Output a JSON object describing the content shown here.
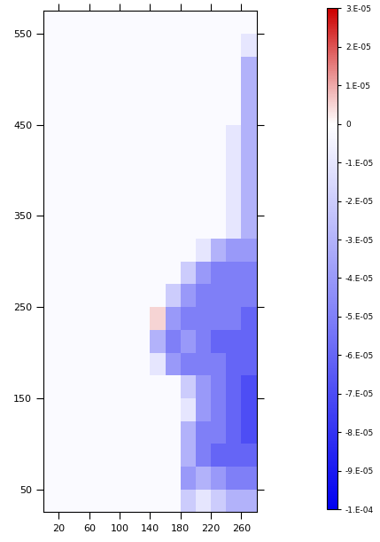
{
  "chart_data": {
    "type": "heatmap",
    "x_edges": [
      0,
      20,
      40,
      60,
      80,
      100,
      120,
      140,
      160,
      180,
      200,
      220,
      240,
      260,
      280
    ],
    "y_edges": [
      25,
      50,
      75,
      100,
      125,
      150,
      175,
      200,
      225,
      250,
      275,
      300,
      325,
      350,
      375,
      400,
      425,
      450,
      475,
      500,
      525,
      550,
      575
    ],
    "cells": [
      [
        -2e-06,
        -2e-06,
        -2e-06,
        -2e-06,
        -2e-06,
        -2e-06,
        -2e-06,
        -2e-06,
        -2e-06,
        -2e-05,
        -1e-05,
        -2e-05,
        -3e-05,
        -3e-05
      ],
      [
        -2e-06,
        -2e-06,
        -2e-06,
        -2e-06,
        -2e-06,
        -2e-06,
        -2e-06,
        -2e-06,
        -2e-06,
        -4e-05,
        -3e-05,
        -4e-05,
        -5e-05,
        -5e-05
      ],
      [
        -2e-06,
        -2e-06,
        -2e-06,
        -2e-06,
        -2e-06,
        -2e-06,
        -2e-06,
        -2e-06,
        -2e-06,
        -3e-05,
        -5e-05,
        -6e-05,
        -6e-05,
        -6e-05
      ],
      [
        -2e-06,
        -2e-06,
        -2e-06,
        -2e-06,
        -2e-06,
        -2e-06,
        -2e-06,
        -2e-06,
        -2e-06,
        -3e-05,
        -5e-05,
        -5e-05,
        -6e-05,
        -7e-05
      ],
      [
        -2e-06,
        -2e-06,
        -2e-06,
        -2e-06,
        -2e-06,
        -2e-06,
        -2e-06,
        -2e-06,
        -2e-06,
        -1e-05,
        -4e-05,
        -5e-05,
        -6e-05,
        -7e-05
      ],
      [
        -2e-06,
        -2e-06,
        -2e-06,
        -2e-06,
        -2e-06,
        -2e-06,
        -2e-06,
        -2e-06,
        -2e-06,
        -2e-05,
        -4e-05,
        -5e-05,
        -6e-05,
        -7e-05
      ],
      [
        -2e-06,
        -2e-06,
        -2e-06,
        -2e-06,
        -2e-06,
        -2e-06,
        -2e-06,
        -1e-05,
        -4e-05,
        -5e-05,
        -5e-05,
        -5e-05,
        -6e-05,
        -6e-05
      ],
      [
        -2e-06,
        -2e-06,
        -2e-06,
        -2e-06,
        -2e-06,
        -2e-06,
        -2e-06,
        -3e-05,
        -5e-05,
        -4e-05,
        -5e-05,
        -6e-05,
        -6e-05,
        -6e-05
      ],
      [
        -2e-06,
        -2e-06,
        -2e-06,
        -2e-06,
        -2e-06,
        -2e-06,
        -2e-06,
        5e-06,
        -4e-05,
        -5e-05,
        -5e-05,
        -5e-05,
        -5e-05,
        -6e-05
      ],
      [
        -2e-06,
        -2e-06,
        -2e-06,
        -2e-06,
        -2e-06,
        -2e-06,
        -2e-06,
        -2e-06,
        -2e-05,
        -4e-05,
        -5e-05,
        -5e-05,
        -5e-05,
        -5e-05
      ],
      [
        -2e-06,
        -2e-06,
        -2e-06,
        -2e-06,
        -2e-06,
        -2e-06,
        -2e-06,
        -2e-06,
        -2e-06,
        -2e-05,
        -4e-05,
        -5e-05,
        -5e-05,
        -5e-05
      ],
      [
        -2e-06,
        -2e-06,
        -2e-06,
        -2e-06,
        -2e-06,
        -2e-06,
        -2e-06,
        -2e-06,
        -2e-06,
        -2e-06,
        -1e-05,
        -3e-05,
        -4e-05,
        -4e-05
      ],
      [
        -2e-06,
        -2e-06,
        -2e-06,
        -2e-06,
        -2e-06,
        -2e-06,
        -2e-06,
        -2e-06,
        -2e-06,
        -2e-06,
        -2e-06,
        -2e-06,
        -1e-05,
        -3e-05
      ],
      [
        -2e-06,
        -2e-06,
        -2e-06,
        -2e-06,
        -2e-06,
        -2e-06,
        -2e-06,
        -2e-06,
        -2e-06,
        -2e-06,
        -2e-06,
        -2e-06,
        -1e-05,
        -3e-05
      ],
      [
        -2e-06,
        -2e-06,
        -2e-06,
        -2e-06,
        -2e-06,
        -2e-06,
        -2e-06,
        -2e-06,
        -2e-06,
        -2e-06,
        -2e-06,
        -2e-06,
        -1e-05,
        -3e-05
      ],
      [
        -2e-06,
        -2e-06,
        -2e-06,
        -2e-06,
        -2e-06,
        -2e-06,
        -2e-06,
        -2e-06,
        -2e-06,
        -2e-06,
        -2e-06,
        -2e-06,
        -1e-05,
        -3e-05
      ],
      [
        -2e-06,
        -2e-06,
        -2e-06,
        -2e-06,
        -2e-06,
        -2e-06,
        -2e-06,
        -2e-06,
        -2e-06,
        -2e-06,
        -2e-06,
        -2e-06,
        -1e-05,
        -3e-05
      ],
      [
        -2e-06,
        -2e-06,
        -2e-06,
        -2e-06,
        -2e-06,
        -2e-06,
        -2e-06,
        -2e-06,
        -2e-06,
        -2e-06,
        -2e-06,
        -2e-06,
        -2e-06,
        -3e-05
      ],
      [
        -2e-06,
        -2e-06,
        -2e-06,
        -2e-06,
        -2e-06,
        -2e-06,
        -2e-06,
        -2e-06,
        -2e-06,
        -2e-06,
        -2e-06,
        -2e-06,
        -2e-06,
        -3e-05
      ],
      [
        -2e-06,
        -2e-06,
        -2e-06,
        -2e-06,
        -2e-06,
        -2e-06,
        -2e-06,
        -2e-06,
        -2e-06,
        -2e-06,
        -2e-06,
        -2e-06,
        -2e-06,
        -3e-05
      ],
      [
        -2e-06,
        -2e-06,
        -2e-06,
        -2e-06,
        -2e-06,
        -2e-06,
        -2e-06,
        -2e-06,
        -2e-06,
        -2e-06,
        -2e-06,
        -2e-06,
        -2e-06,
        -1e-05
      ],
      [
        -2e-06,
        -2e-06,
        -2e-06,
        -2e-06,
        -2e-06,
        -2e-06,
        -2e-06,
        -2e-06,
        -2e-06,
        -2e-06,
        -2e-06,
        -2e-06,
        -2e-06,
        -2e-06
      ]
    ],
    "xlim": [
      0,
      280
    ],
    "ylim": [
      25,
      575
    ],
    "xticks": [
      20,
      60,
      100,
      140,
      180,
      220,
      260
    ],
    "yticks": [
      50,
      150,
      250,
      350,
      450,
      550
    ],
    "colorbar": {
      "range": [
        -0.0001,
        3e-05
      ],
      "ticks": [
        {
          "value": 3e-05,
          "label": "3.E-05"
        },
        {
          "value": 2e-05,
          "label": "2.E-05"
        },
        {
          "value": 1e-05,
          "label": "1.E-05"
        },
        {
          "value": 0,
          "label": "0"
        },
        {
          "value": -1e-05,
          "label": "-1.E-05"
        },
        {
          "value": -2e-05,
          "label": "-2.E-05"
        },
        {
          "value": -3e-05,
          "label": "-3.E-05"
        },
        {
          "value": -4e-05,
          "label": "-4.E-05"
        },
        {
          "value": -5e-05,
          "label": "-5.E-05"
        },
        {
          "value": -6e-05,
          "label": "-6.E-05"
        },
        {
          "value": -7e-05,
          "label": "-7.E-05"
        },
        {
          "value": -8e-05,
          "label": "-8.E-05"
        },
        {
          "value": -9e-05,
          "label": "-9.E-05"
        },
        {
          "value": -0.0001,
          "label": "-1.E-04"
        }
      ]
    }
  }
}
